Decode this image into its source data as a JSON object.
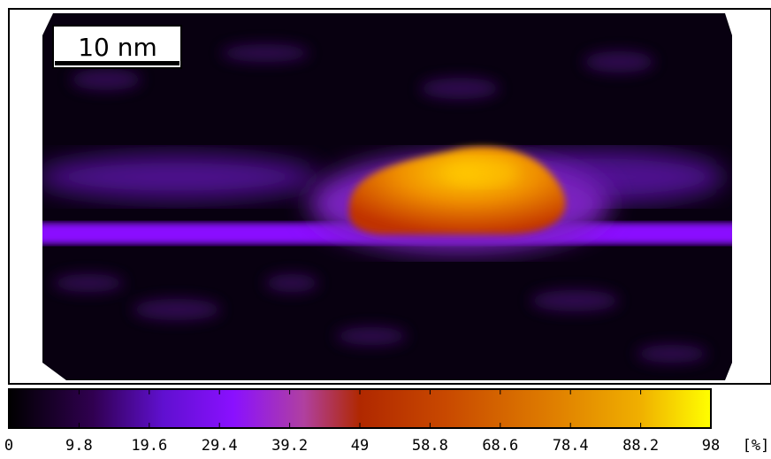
{
  "scale_bar": {
    "label": "10 nm"
  },
  "colorbar": {
    "lim": [
      0,
      98
    ],
    "ticks": [
      0,
      9.8,
      19.6,
      29.4,
      39.2,
      49,
      58.8,
      68.6,
      78.4,
      88.2,
      98
    ],
    "unit": "[%]"
  }
}
